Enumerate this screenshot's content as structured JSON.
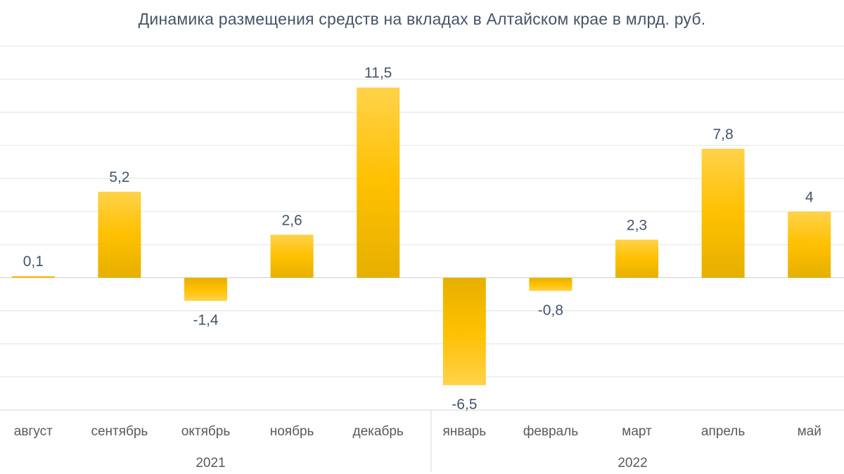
{
  "chart_data": {
    "type": "bar",
    "title": "Динамика размещения средств на вкладах в Алтайском крае в млрд. руб.",
    "categories": [
      "август",
      "сентябрь",
      "октябрь",
      "ноябрь",
      "декабрь",
      "январь",
      "февраль",
      "март",
      "апрель",
      "май"
    ],
    "values": [
      0.1,
      5.2,
      -1.4,
      2.6,
      11.5,
      -6.5,
      -0.8,
      2.3,
      7.8,
      4
    ],
    "data_labels": [
      "0,1",
      "5,2",
      "-1,4",
      "2,6",
      "11,5",
      "-6,5",
      "-0,8",
      "2,3",
      "7,8",
      "4"
    ],
    "groups": [
      {
        "label": "2021",
        "categories": [
          "август",
          "сентябрь",
          "октябрь",
          "ноябрь",
          "декабрь"
        ]
      },
      {
        "label": "2022",
        "categories": [
          "январь",
          "февраль",
          "март",
          "апрель",
          "май"
        ]
      }
    ],
    "ylim": [
      -8,
      14
    ],
    "y_grid_step": 2,
    "grid": true,
    "legend": "none",
    "bar_colors": {
      "light": "#ffd24a",
      "mid": "#ffc000",
      "dark": "#e6b000"
    }
  }
}
